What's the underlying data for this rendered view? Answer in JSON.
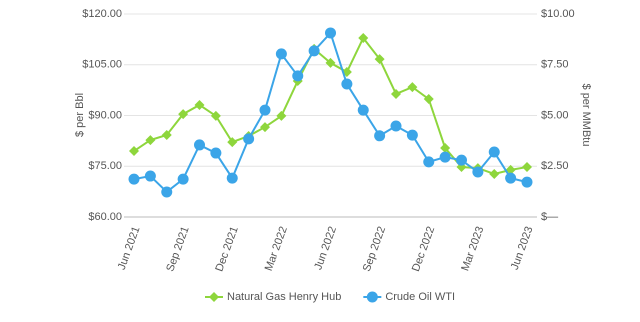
{
  "chart_data": {
    "type": "line",
    "categories": [
      "Jun 2021",
      null,
      null,
      "Sep 2021",
      null,
      null,
      "Dec 2021",
      null,
      null,
      "Mar 2022",
      null,
      null,
      "Jun 2022",
      null,
      null,
      "Sep 2022",
      null,
      null,
      "Dec 2022",
      null,
      null,
      "Mar 2023",
      null,
      null,
      "Jun 2023"
    ],
    "series": [
      {
        "name": "Natural Gas Henry Hub",
        "color": "#8ed63c",
        "marker": "diamond",
        "axis": "y2",
        "values": [
          3.25,
          3.79,
          4.04,
          5.07,
          5.52,
          4.98,
          3.69,
          3.99,
          4.43,
          4.98,
          6.7,
          8.28,
          7.59,
          7.14,
          8.82,
          7.78,
          6.06,
          6.4,
          5.81,
          3.4,
          2.46,
          2.41,
          2.12,
          2.32,
          2.46
        ]
      },
      {
        "name": "Crude Oil WTI",
        "color": "#3ba5e8",
        "marker": "circle",
        "values": [
          71.2,
          72.1,
          67.4,
          71.2,
          81.3,
          78.9,
          71.5,
          83.1,
          91.6,
          108.2,
          101.7,
          109.1,
          114.4,
          99.3,
          91.6,
          84.0,
          86.9,
          84.2,
          76.3,
          77.7,
          76.8,
          73.3,
          79.2,
          71.5,
          70.3
        ]
      }
    ],
    "ylabel": "$ per Bbl",
    "y2label": "$ per MMBtu",
    "ylim": [
      60,
      120
    ],
    "yticks": [
      {
        "value": 60,
        "label": "$60.00"
      },
      {
        "value": 75,
        "label": "$75.00"
      },
      {
        "value": 90,
        "label": "$90.00"
      },
      {
        "value": 105,
        "label": "$105.00"
      },
      {
        "value": 120,
        "label": "$120.00"
      }
    ],
    "y2lim": [
      0,
      10
    ],
    "y2ticks": [
      {
        "value": 0,
        "label": "$—"
      },
      {
        "value": 2.5,
        "label": "$2.50"
      },
      {
        "value": 5,
        "label": "$5.00"
      },
      {
        "value": 7.5,
        "label": "$7.50"
      },
      {
        "value": 10,
        "label": "$10.00"
      }
    ],
    "grid": true,
    "legend": "bottom"
  }
}
